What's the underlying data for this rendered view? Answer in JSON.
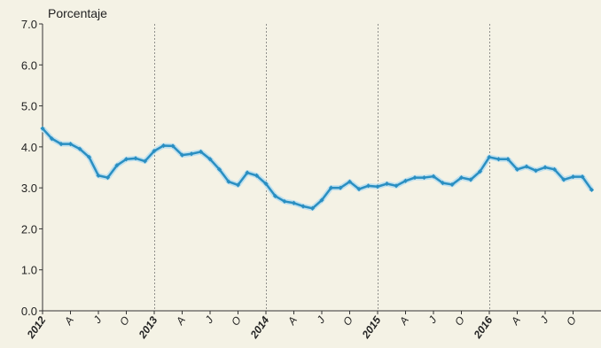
{
  "chart_data": {
    "type": "line",
    "ylabel": "Porcentaje",
    "ylim": [
      0,
      7
    ],
    "y_ticks": [
      "0.0",
      "1.0",
      "2.0",
      "3.0",
      "4.0",
      "5.0",
      "6.0",
      "7.0"
    ],
    "x_tick_labels": [
      "2012",
      "A",
      "J",
      "O",
      "2013",
      "A",
      "J",
      "O",
      "2014",
      "A",
      "J",
      "O",
      "2015",
      "A",
      "J",
      "O",
      "2016",
      "A",
      "J",
      "O"
    ],
    "grid": "vertical dashed lines at year boundaries",
    "series_color": "#2a8fc2",
    "x": [
      "2012-01",
      "2012-02",
      "2012-03",
      "2012-04",
      "2012-05",
      "2012-06",
      "2012-07",
      "2012-08",
      "2012-09",
      "2012-10",
      "2012-11",
      "2012-12",
      "2013-01",
      "2013-02",
      "2013-03",
      "2013-04",
      "2013-05",
      "2013-06",
      "2013-07",
      "2013-08",
      "2013-09",
      "2013-10",
      "2013-11",
      "2013-12",
      "2014-01",
      "2014-02",
      "2014-03",
      "2014-04",
      "2014-05",
      "2014-06",
      "2014-07",
      "2014-08",
      "2014-09",
      "2014-10",
      "2014-11",
      "2014-12",
      "2015-01",
      "2015-02",
      "2015-03",
      "2015-04",
      "2015-05",
      "2015-06",
      "2015-07",
      "2015-08",
      "2015-09",
      "2015-10",
      "2015-11",
      "2015-12",
      "2016-01",
      "2016-02",
      "2016-03",
      "2016-04",
      "2016-05",
      "2016-06",
      "2016-07",
      "2016-08",
      "2016-09",
      "2016-10",
      "2016-11",
      "2016-12"
    ],
    "series": [
      {
        "values": [
          4.45,
          4.2,
          4.07,
          4.07,
          3.95,
          3.75,
          3.3,
          3.25,
          3.55,
          3.7,
          3.72,
          3.65,
          3.9,
          4.03,
          4.02,
          3.8,
          3.83,
          3.88,
          3.7,
          3.45,
          3.15,
          3.07,
          3.37,
          3.3,
          3.1,
          2.8,
          2.67,
          2.63,
          2.55,
          2.5,
          2.7,
          3.0,
          3.0,
          3.15,
          2.97,
          3.05,
          3.03,
          3.1,
          3.05,
          3.17,
          3.25,
          3.25,
          3.28,
          3.12,
          3.08,
          3.25,
          3.2,
          3.4,
          3.75,
          3.7,
          3.7,
          3.45,
          3.52,
          3.42,
          3.5,
          3.45,
          3.2,
          3.27,
          3.27,
          2.95
        ]
      }
    ]
  }
}
